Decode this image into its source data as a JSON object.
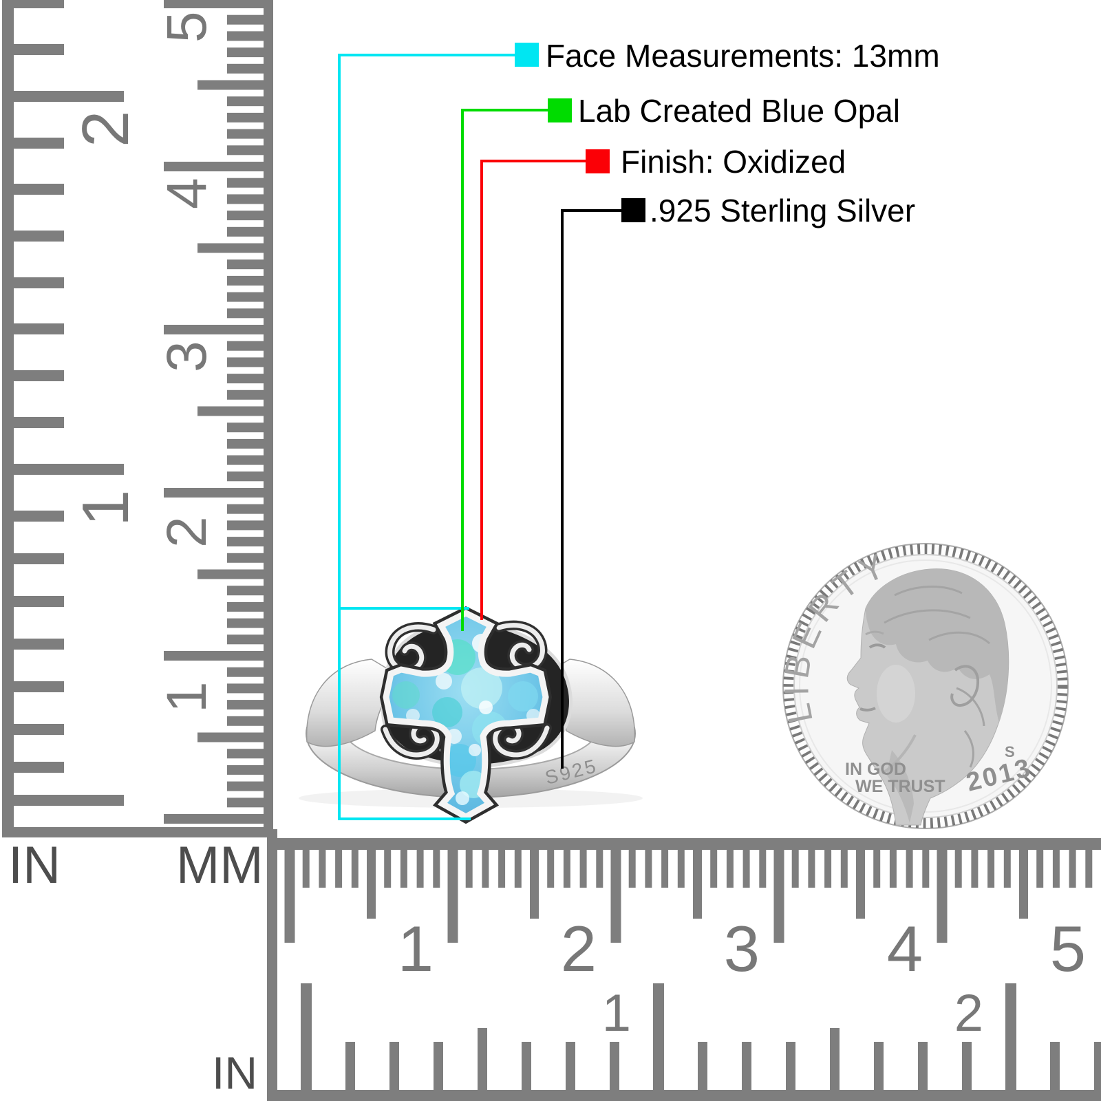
{
  "scene": {
    "background": "#ffffff"
  },
  "annotations": [
    {
      "swatch_color": "#00e6f2",
      "label": "Face Measurements: 13mm"
    },
    {
      "swatch_color": "#00dc00",
      "label": "Lab Created Blue Opal"
    },
    {
      "swatch_color": "#fb0006",
      "label": "Finish: Oxidized"
    },
    {
      "swatch_color": "#000000",
      "label": ".925 Sterling Silver"
    }
  ],
  "rulers": {
    "left_inch": {
      "unit_label": "IN",
      "numbers": [
        "2",
        "1"
      ]
    },
    "left_mm": {
      "unit_label": "MM",
      "numbers": [
        "5",
        "4",
        "3",
        "2",
        "1"
      ]
    },
    "bottom_mm": {
      "numbers": [
        "1",
        "2",
        "3",
        "4",
        "5"
      ]
    },
    "bottom_inch": {
      "unit_label": "IN",
      "numbers": [
        "1",
        "2"
      ]
    }
  },
  "ring": {
    "engraving": "S925",
    "opal_color": "#6fc6e8",
    "metal_color": "#d9d9d9"
  },
  "coin": {
    "legend": "LIBERTY",
    "motto_line1": "IN GOD",
    "motto_line2": "WE TRUST",
    "mint_mark": "S",
    "year": "2013"
  }
}
